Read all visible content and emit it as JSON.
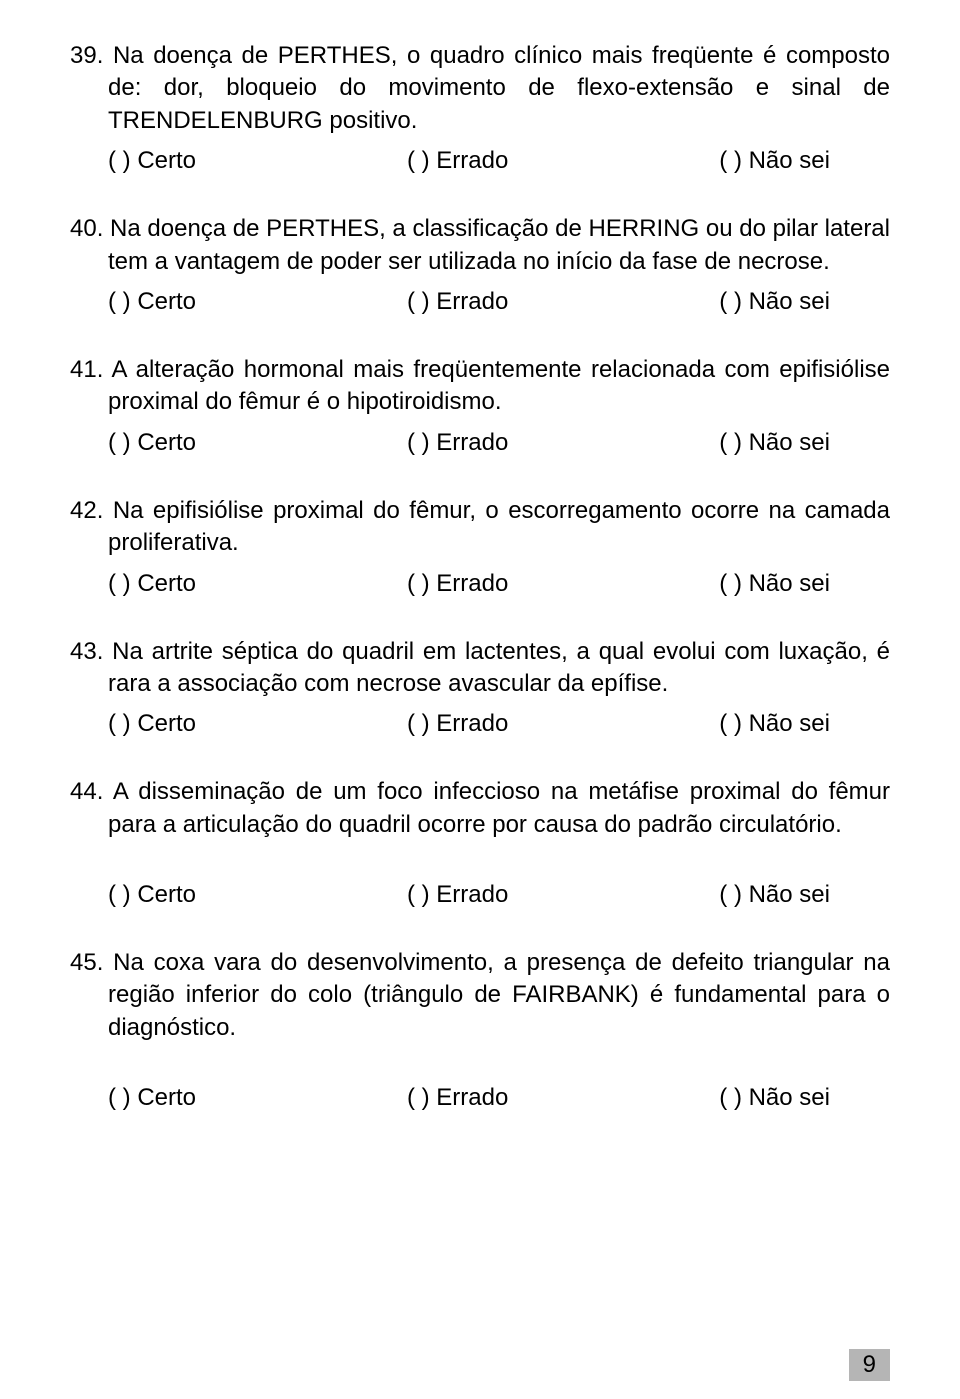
{
  "options": {
    "certo": "(   ) Certo",
    "errado": "(   ) Errado",
    "naosei": "(   ) Não sei"
  },
  "questions": [
    {
      "num": "39.",
      "text": "Na doença de PERTHES, o quadro clínico mais freqüente é composto de: dor, bloqueio do movimento de flexo-extensão e sinal de TRENDELENBURG positivo.",
      "extra_space": false
    },
    {
      "num": "40.",
      "text": "Na doença de PERTHES, a classificação de HERRING ou do pilar lateral tem a vantagem de poder ser utilizada no início da fase de necrose.",
      "extra_space": false
    },
    {
      "num": "41.",
      "text": "A alteração hormonal mais freqüentemente relacionada com epifisiólise proximal do fêmur é o hipotiroidismo.",
      "extra_space": false
    },
    {
      "num": "42.",
      "text": "Na epifisiólise proximal do fêmur, o escorregamento ocorre na camada proliferativa.",
      "extra_space": false
    },
    {
      "num": "43.",
      "text": "Na artrite séptica do quadril em lactentes, a qual evolui com luxação, é rara a associação com necrose avascular da epífise.",
      "extra_space": false
    },
    {
      "num": "44.",
      "text": "A disseminação de um foco infeccioso na metáfise proximal do fêmur para a articulação do quadril ocorre por causa do padrão circulatório.",
      "extra_space": true
    },
    {
      "num": "45.",
      "text": "Na coxa vara do desenvolvimento, a presença de defeito triangular na região inferior do colo (triângulo de FAIRBANK) é fundamental para o diagnóstico.",
      "extra_space": true
    }
  ],
  "page_number": "9"
}
